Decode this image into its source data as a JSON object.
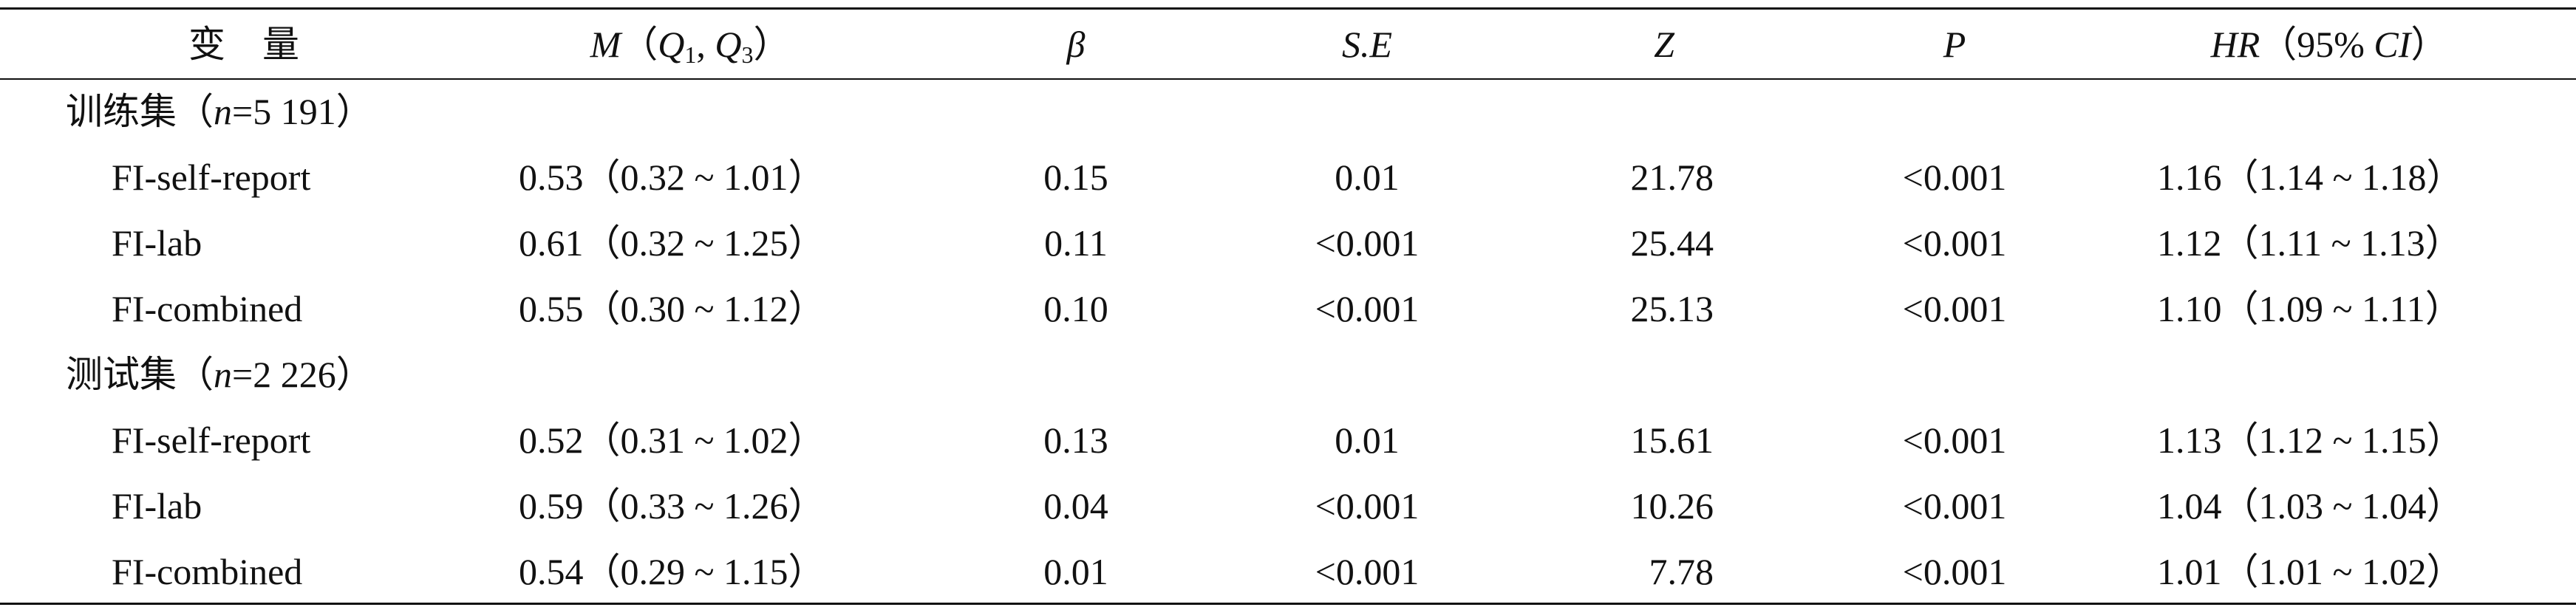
{
  "table": {
    "header": {
      "variable": "变　量",
      "m": [
        "M",
        "（",
        "Q",
        "1",
        ", ",
        "Q",
        "3",
        "）"
      ],
      "beta": "β",
      "se": "S.E",
      "z": "Z",
      "p": "P",
      "hr": [
        "HR",
        "（95% ",
        "CI",
        "）"
      ]
    },
    "groups": [
      {
        "label": [
          "训练集（",
          "n",
          "=5 191）"
        ],
        "rows": [
          [
            "FI-self-report",
            "0.53（0.32 ~ 1.01）",
            "0.15",
            "0.01",
            "21.78",
            "<0.001",
            "1.16（1.14 ~ 1.18）"
          ],
          [
            "FI-lab",
            "0.61（0.32 ~ 1.25）",
            "0.11",
            "<0.001",
            "25.44",
            "<0.001",
            "1.12（1.11 ~ 1.13）"
          ],
          [
            "FI-combined",
            "0.55（0.30 ~ 1.12）",
            "0.10",
            "<0.001",
            "25.13",
            "<0.001",
            "1.10（1.09 ~ 1.11）"
          ]
        ]
      },
      {
        "label": [
          "测试集（",
          "n",
          "=2 226）"
        ],
        "rows": [
          [
            "FI-self-report",
            "0.52（0.31 ~ 1.02）",
            "0.13",
            "0.01",
            "15.61",
            "<0.001",
            "1.13（1.12 ~ 1.15）"
          ],
          [
            "FI-lab",
            "0.59（0.33 ~ 1.26）",
            "0.04",
            "<0.001",
            "10.26",
            "<0.001",
            "1.04（1.03 ~ 1.04）"
          ],
          [
            "FI-combined",
            "0.54（0.29 ~ 1.15）",
            "0.01",
            "<0.001",
            "7.78",
            "<0.001",
            "1.01（1.01 ~ 1.02）"
          ]
        ]
      }
    ]
  }
}
